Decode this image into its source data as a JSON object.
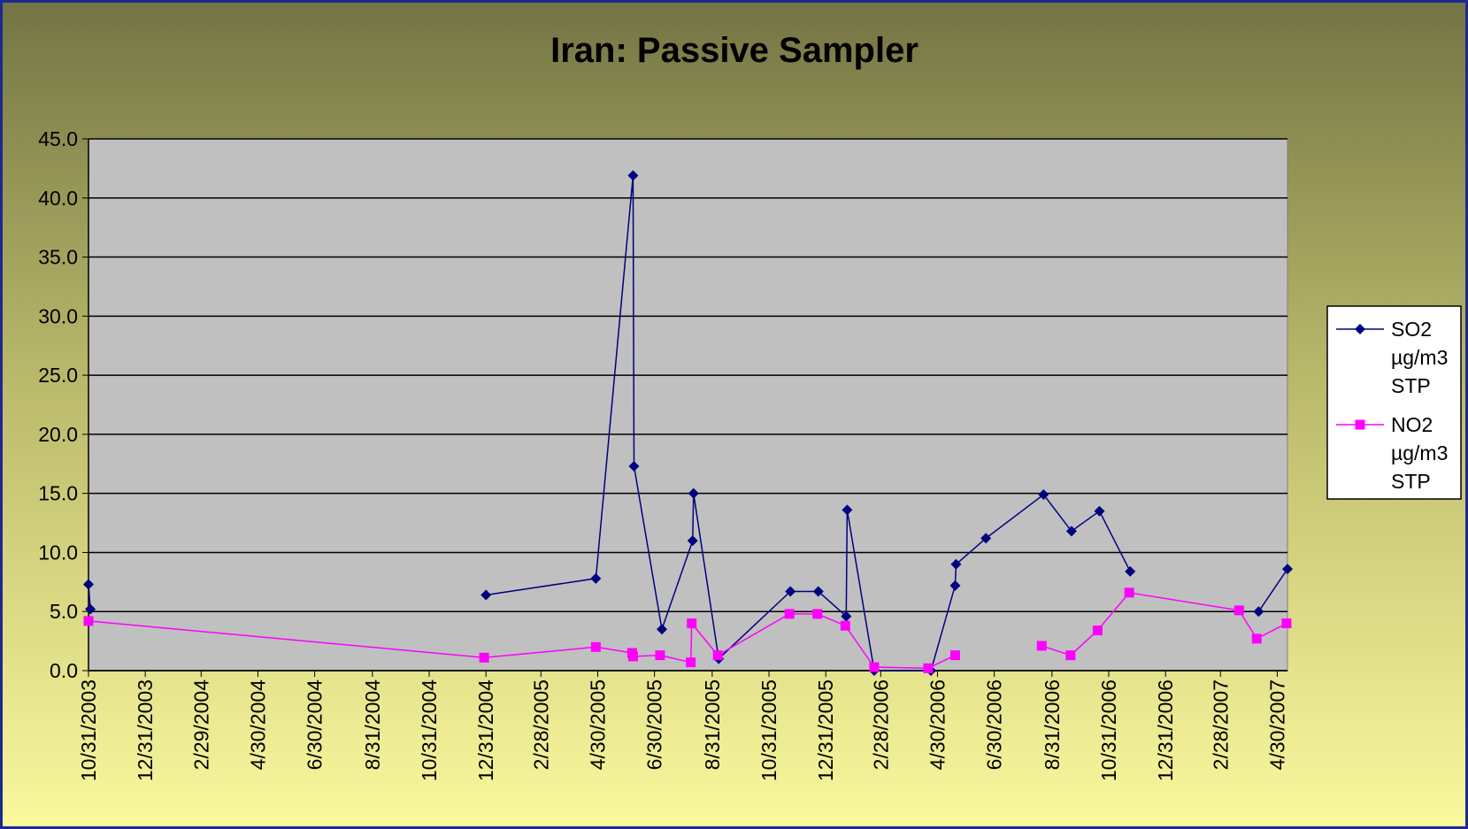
{
  "chart_data": {
    "type": "line",
    "title": "Iran: Passive Sampler",
    "xlim": [
      "2003-10-31",
      "2007-05-11"
    ],
    "xticks": [
      {
        "value": "2003-10-31",
        "label": "10/31/2003"
      },
      {
        "value": "2003-12-31",
        "label": "12/31/2003"
      },
      {
        "value": "2004-02-29",
        "label": "2/29/2004"
      },
      {
        "value": "2004-04-30",
        "label": "4/30/2004"
      },
      {
        "value": "2004-06-30",
        "label": "6/30/2004"
      },
      {
        "value": "2004-08-31",
        "label": "8/31/2004"
      },
      {
        "value": "2004-10-31",
        "label": "10/31/2004"
      },
      {
        "value": "2004-12-31",
        "label": "12/31/2004"
      },
      {
        "value": "2005-02-28",
        "label": "2/28/2005"
      },
      {
        "value": "2005-04-30",
        "label": "4/30/2005"
      },
      {
        "value": "2005-06-30",
        "label": "6/30/2005"
      },
      {
        "value": "2005-08-31",
        "label": "8/31/2005"
      },
      {
        "value": "2005-10-31",
        "label": "10/31/2005"
      },
      {
        "value": "2005-12-31",
        "label": "12/31/2005"
      },
      {
        "value": "2006-02-28",
        "label": "2/28/2006"
      },
      {
        "value": "2006-04-30",
        "label": "4/30/2006"
      },
      {
        "value": "2006-06-30",
        "label": "6/30/2006"
      },
      {
        "value": "2006-08-31",
        "label": "8/31/2006"
      },
      {
        "value": "2006-10-31",
        "label": "10/31/2006"
      },
      {
        "value": "2006-12-31",
        "label": "12/31/2006"
      },
      {
        "value": "2007-02-28",
        "label": "2/28/2007"
      },
      {
        "value": "2007-04-30",
        "label": "4/30/2007"
      }
    ],
    "ylim": [
      0,
      45
    ],
    "yticks": [
      {
        "value": 0,
        "label": "0.0"
      },
      {
        "value": 5,
        "label": "5.0"
      },
      {
        "value": 10,
        "label": "10.0"
      },
      {
        "value": 15,
        "label": "15.0"
      },
      {
        "value": 20,
        "label": "20.0"
      },
      {
        "value": 25,
        "label": "25.0"
      },
      {
        "value": 30,
        "label": "30.0"
      },
      {
        "value": 35,
        "label": "35.0"
      },
      {
        "value": 40,
        "label": "40.0"
      },
      {
        "value": 45,
        "label": "45.0"
      }
    ],
    "grid": true,
    "legend": "right",
    "series": [
      {
        "name": "SO2 µg/m3 STP",
        "color": "#000080",
        "marker": "diamond",
        "x": [
          "2003-10-31",
          "2003-11-02",
          null,
          "2004-12-31",
          "2005-04-28",
          "2005-06-07",
          "2005-06-08",
          "2005-07-08",
          "2005-08-10",
          "2005-08-11",
          "2005-09-07",
          "2005-11-23",
          "2005-12-23",
          "2006-01-22",
          "2006-01-23",
          "2006-02-21",
          "2006-04-23",
          "2006-05-19",
          "2006-05-20",
          "2006-06-21",
          "2006-08-22",
          "2006-09-21",
          "2006-10-21",
          "2006-11-23",
          null,
          "2007-04-10",
          "2007-05-11"
        ],
        "values": [
          7.3,
          5.2,
          null,
          6.4,
          7.8,
          41.9,
          17.3,
          3.5,
          11.0,
          15.0,
          1.0,
          6.7,
          6.7,
          4.6,
          13.6,
          0.0,
          0.0,
          7.2,
          9.0,
          11.2,
          14.9,
          11.8,
          13.5,
          8.4,
          null,
          5.0,
          8.6
        ]
      },
      {
        "name": "NO2 µg/m3 STP",
        "color": "#ff00ff",
        "marker": "square",
        "x": [
          "2003-10-31",
          "2004-12-29",
          "2005-04-28",
          "2005-06-06",
          "2005-06-07",
          "2005-07-06",
          "2005-08-08",
          "2005-08-09",
          "2005-09-06",
          "2005-11-22",
          "2005-12-22",
          "2006-01-21",
          "2006-02-21",
          "2006-04-20",
          "2006-05-19",
          null,
          "2006-08-20",
          "2006-09-20",
          "2006-10-19",
          "2006-11-22",
          "2007-03-20",
          "2007-04-08",
          "2007-05-10"
        ],
        "values": [
          4.2,
          1.1,
          2.0,
          1.5,
          1.2,
          1.3,
          0.7,
          4.0,
          1.3,
          4.8,
          4.8,
          3.8,
          0.3,
          0.2,
          1.3,
          null,
          2.1,
          1.3,
          3.4,
          6.6,
          5.1,
          2.7,
          4.0
        ]
      }
    ]
  }
}
